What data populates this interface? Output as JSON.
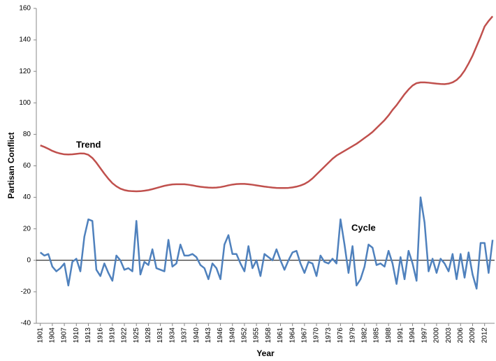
{
  "chart_data": {
    "type": "line",
    "x_label": "Year",
    "y_label": "Partisan Conflict",
    "annotations": [
      "Trend",
      "Cycle"
    ],
    "x": [
      1901,
      1902,
      1903,
      1904,
      1905,
      1906,
      1907,
      1908,
      1909,
      1910,
      1911,
      1912,
      1913,
      1914,
      1915,
      1916,
      1917,
      1918,
      1919,
      1920,
      1921,
      1922,
      1923,
      1924,
      1925,
      1926,
      1927,
      1928,
      1929,
      1930,
      1931,
      1932,
      1933,
      1934,
      1935,
      1936,
      1937,
      1938,
      1939,
      1940,
      1941,
      1942,
      1943,
      1944,
      1945,
      1946,
      1947,
      1948,
      1949,
      1950,
      1951,
      1952,
      1953,
      1954,
      1955,
      1956,
      1957,
      1958,
      1959,
      1960,
      1961,
      1962,
      1963,
      1964,
      1965,
      1966,
      1967,
      1968,
      1969,
      1970,
      1971,
      1972,
      1973,
      1974,
      1975,
      1976,
      1977,
      1978,
      1979,
      1980,
      1981,
      1982,
      1983,
      1984,
      1985,
      1986,
      1987,
      1988,
      1989,
      1990,
      1991,
      1992,
      1993,
      1994,
      1995,
      1996,
      1997,
      1998,
      1999,
      2000,
      2001,
      2002,
      2003,
      2004,
      2005,
      2006,
      2007,
      2008,
      2009,
      2010,
      2011,
      2012,
      2013,
      2014
    ],
    "series": [
      {
        "name": "Trend",
        "color": "#c0504d",
        "values": [
          73,
          72,
          70.8,
          69.5,
          68.5,
          67.8,
          67.3,
          67.2,
          67.3,
          67.6,
          67.9,
          67.8,
          67,
          65,
          62,
          58.5,
          55,
          51.8,
          49,
          47,
          45.5,
          44.6,
          44.1,
          43.9,
          43.8,
          43.9,
          44.2,
          44.6,
          45.2,
          45.9,
          46.6,
          47.3,
          47.8,
          48.2,
          48.3,
          48.3,
          48.3,
          48,
          47.6,
          47.1,
          46.7,
          46.4,
          46.2,
          46.1,
          46.2,
          46.5,
          47,
          47.6,
          48.1,
          48.4,
          48.5,
          48.5,
          48.3,
          48,
          47.6,
          47.2,
          46.8,
          46.5,
          46.2,
          46,
          45.9,
          45.9,
          46,
          46.3,
          46.8,
          47.5,
          48.5,
          50,
          52,
          54.5,
          57,
          59.5,
          62,
          64.5,
          66.5,
          68,
          69.5,
          71,
          72.5,
          74,
          75.8,
          77.7,
          79.5,
          81.5,
          84,
          86.5,
          89,
          92,
          95.5,
          98.5,
          102,
          105.5,
          108.5,
          111,
          112.5,
          113,
          113,
          112.8,
          112.5,
          112.2,
          112,
          111.9,
          112.2,
          113,
          114.5,
          117,
          120.5,
          125,
          130,
          136,
          142,
          148.5,
          152,
          155
        ]
      },
      {
        "name": "Cycle",
        "color": "#4f81bd",
        "values": [
          5,
          3,
          4,
          -4,
          -7,
          -5,
          -2,
          -16,
          -1,
          1,
          -7,
          15,
          26,
          25,
          -6,
          -10,
          -2,
          -8,
          -13,
          3,
          0,
          -6,
          -5,
          -7,
          25,
          -9,
          -1,
          -3,
          7,
          -5,
          -6,
          -7,
          13,
          -4,
          -2,
          10,
          3,
          3,
          4,
          2,
          -3,
          -5,
          -12,
          -2,
          -5,
          -12,
          10,
          16,
          4,
          4,
          -2,
          -7,
          9,
          -5,
          0,
          -10,
          4,
          2,
          0,
          7,
          0,
          -6,
          0,
          5,
          6,
          -2,
          -8,
          -1,
          -2,
          -10,
          3,
          -1,
          -2,
          1,
          -2,
          26,
          10,
          -8,
          9,
          -16,
          -12,
          -4,
          10,
          8,
          -3,
          -2,
          -4,
          6,
          -2,
          -15,
          2,
          -12,
          6,
          -2,
          -13,
          40,
          24,
          -7,
          1,
          -8,
          1,
          -2,
          -7,
          4,
          -12,
          4,
          -11,
          5,
          -9,
          -18,
          11,
          11,
          -8,
          13
        ]
      }
    ],
    "xlim": [
      1900,
      2014.5
    ],
    "xticks": [
      1901,
      1904,
      1907,
      1910,
      1913,
      1916,
      1919,
      1922,
      1925,
      1928,
      1931,
      1934,
      1937,
      1940,
      1943,
      1946,
      1949,
      1952,
      1955,
      1958,
      1961,
      1964,
      1967,
      1970,
      1973,
      1976,
      1979,
      1982,
      1985,
      1988,
      1991,
      1994,
      1997,
      2000,
      2003,
      2006,
      2009,
      2012
    ],
    "ylim": [
      -40,
      160
    ],
    "yticks": [
      -40,
      -20,
      0,
      20,
      40,
      60,
      80,
      100,
      120,
      140,
      160
    ],
    "grid": false
  }
}
